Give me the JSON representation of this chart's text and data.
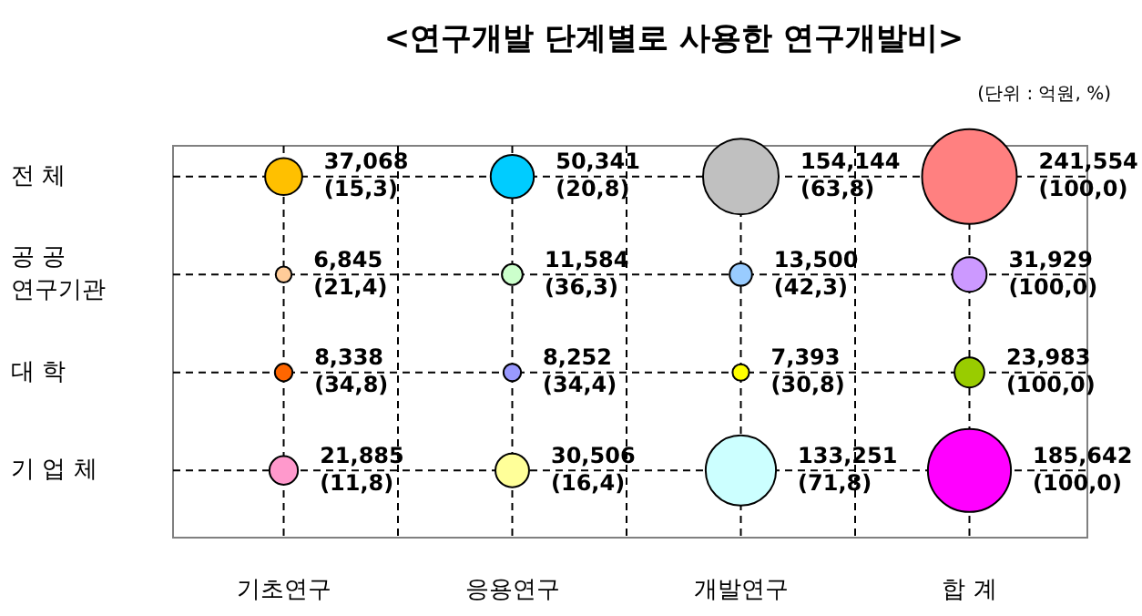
{
  "chart_data": {
    "type": "other",
    "title": "<연구개발 단계별로 사용한 연구개발비>",
    "annotations": [
      "(단위 : 억원, %)"
    ],
    "categories": [
      "기초연구",
      "응용연구",
      "개발연구",
      "합 계"
    ],
    "y_categories": [
      "전 체",
      "공 공\n연구기관",
      "대 학",
      "기 업 체"
    ],
    "series": [
      {
        "colors": [
          "#ffc000",
          "#00ccff",
          "#c0c0c0",
          "#ff8080"
        ],
        "values": [
          37068,
          50341,
          154144,
          241554
        ],
        "value_labels": [
          "37,068\n(15,3)",
          "50,341\n(20,8)",
          "154,144\n(63,8)",
          "241,554\n(100,0)"
        ]
      },
      {
        "colors": [
          "#ffcc99",
          "#ccffcc",
          "#99ccff",
          "#cc99ff"
        ],
        "values": [
          6845,
          11584,
          13500,
          31929
        ],
        "value_labels": [
          "6,845\n(21,4)",
          "11,584\n(36,3)",
          "13,500\n(42,3)",
          "31,929\n(100,0)"
        ]
      },
      {
        "colors": [
          "#ff6600",
          "#9999ff",
          "#ffff00",
          "#99cc00"
        ],
        "values": [
          8338,
          8252,
          7393,
          23983
        ],
        "value_labels": [
          "8,338\n(34,8)",
          "8,252\n(34,4)",
          "7,393\n(30,8)",
          "23,983\n(100,0)"
        ]
      },
      {
        "colors": [
          "#ff99cc",
          "#ffff99",
          "#ccffff",
          "#ff00ff"
        ],
        "values": [
          21885,
          30506,
          133251,
          185642
        ],
        "value_labels": [
          "21,885\n(11,8)",
          "30,506\n(16,4)",
          "133,251\n(71,8)",
          "185,642\n(100,0)"
        ]
      }
    ]
  }
}
